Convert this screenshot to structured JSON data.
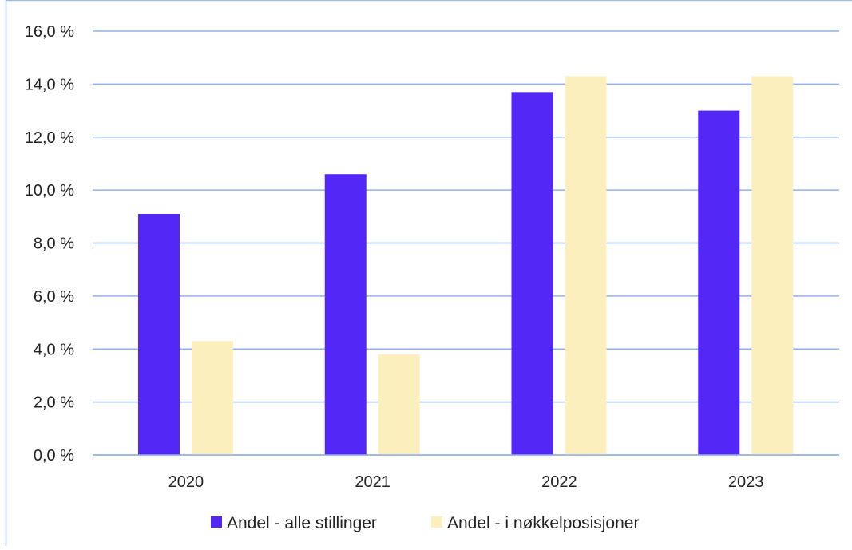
{
  "colors": {
    "series_1": "#5327f5",
    "series_2": "#fbefbe",
    "gridline": "#8fb0e8",
    "frame": "#9bbbe8"
  },
  "chart_data": {
    "type": "bar",
    "categories": [
      "2020",
      "2021",
      "2022",
      "2023"
    ],
    "series": [
      {
        "name": "Andel - alle stillinger",
        "values": [
          9.1,
          10.6,
          13.7,
          13.0
        ]
      },
      {
        "name": "Andel - i nøkkelposisjoner",
        "values": [
          4.3,
          3.8,
          14.3,
          14.3
        ]
      }
    ],
    "ylim": [
      0,
      16
    ],
    "yticks": [
      0,
      2,
      4,
      6,
      8,
      10,
      12,
      14,
      16
    ],
    "ytick_labels": [
      "0,0 %",
      "2,0 %",
      "4,0 %",
      "6,0 %",
      "8,0 %",
      "10,0 %",
      "12,0 %",
      "14,0 %",
      "16,0 %"
    ],
    "title": "",
    "xlabel": "",
    "ylabel": "",
    "grid": true,
    "legend_position": "bottom"
  }
}
